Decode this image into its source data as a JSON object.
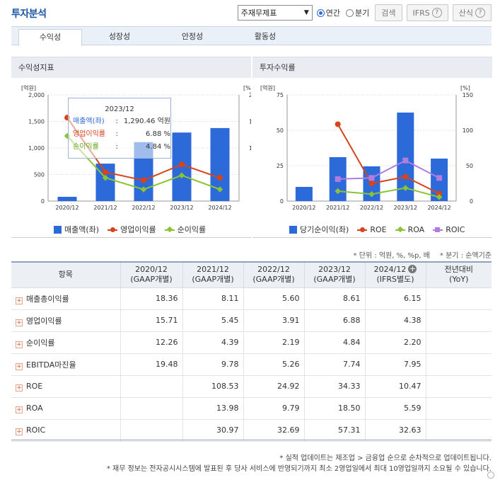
{
  "header": {
    "title": "투자분석",
    "select_value": "주재무제표",
    "radio_annual": "연간",
    "radio_quarter": "분기",
    "search_label": "검색",
    "ifrs_label": "IFRS",
    "formula_label": "산식"
  },
  "tabs": [
    {
      "label": "수익성"
    },
    {
      "label": "성장성"
    },
    {
      "label": "안정성"
    },
    {
      "label": "활동성"
    }
  ],
  "left_panel": {
    "title": "수익성지표",
    "tooltip": {
      "title": "2023/12",
      "rows": [
        {
          "label": "매출액(좌)",
          "sep": ":",
          "value": "1,290.46 억원"
        },
        {
          "label": "영업이익률",
          "sep": ":",
          "value": "6.88 %"
        },
        {
          "label": "순이익률",
          "sep": ":",
          "value": "4.84 %"
        }
      ]
    },
    "legend": [
      "매출액(좌)",
      "영업이익률",
      "순이익률"
    ]
  },
  "right_panel": {
    "title": "투자수익률",
    "legend": [
      "당기순이익(좌)",
      "ROE",
      "ROA",
      "ROIC"
    ]
  },
  "chart_data": [
    {
      "type": "bar",
      "title": "수익성지표",
      "categories": [
        "2020/12",
        "2021/12",
        "2022/12",
        "2023/12",
        "2024/12"
      ],
      "y_left_unit": "[억원]",
      "y_right_unit": "[%]",
      "y_left_ticks": [
        "0",
        "500",
        "1,000",
        "1,500",
        "2,000"
      ],
      "y_right_ticks": [
        "0",
        "5",
        "10",
        "15",
        "20"
      ],
      "ylim_left": [
        0,
        2000
      ],
      "ylim_right": [
        0,
        20
      ],
      "series": [
        {
          "name": "매출액(좌)",
          "type": "bar",
          "axis": "left",
          "color": "#2b6ad8",
          "values": [
            80,
            705,
            1110,
            1290.46,
            1375
          ]
        },
        {
          "name": "영업이익률",
          "type": "line",
          "axis": "right",
          "color": "#d8431c",
          "marker": "circle",
          "values": [
            15.71,
            5.45,
            3.91,
            6.88,
            4.38
          ]
        },
        {
          "name": "순이익률",
          "type": "line",
          "axis": "right",
          "color": "#8bc432",
          "marker": "diamond",
          "values": [
            12.26,
            4.39,
            2.19,
            4.84,
            2.2
          ]
        }
      ]
    },
    {
      "type": "bar",
      "title": "투자수익률",
      "categories": [
        "2020/12",
        "2021/12",
        "2022/12",
        "2023/12",
        "2024/12"
      ],
      "y_left_unit": "[억원]",
      "y_right_unit": "[%]",
      "y_left_ticks": [
        "0",
        "25",
        "50",
        "75"
      ],
      "y_right_ticks": [
        "0",
        "50",
        "100",
        "150"
      ],
      "ylim_left": [
        0,
        75
      ],
      "ylim_right": [
        0,
        150
      ],
      "series": [
        {
          "name": "당기순이익(좌)",
          "type": "bar",
          "axis": "left",
          "color": "#2b6ad8",
          "values": [
            10,
            31,
            24.5,
            62.5,
            30
          ]
        },
        {
          "name": "ROE",
          "type": "line",
          "axis": "right",
          "color": "#d8431c",
          "marker": "circle",
          "values": [
            null,
            108.53,
            24.92,
            34.33,
            10.47
          ]
        },
        {
          "name": "ROA",
          "type": "line",
          "axis": "right",
          "color": "#8bc432",
          "marker": "diamond",
          "values": [
            null,
            13.98,
            9.79,
            18.5,
            5.59
          ]
        },
        {
          "name": "ROIC",
          "type": "line",
          "axis": "right",
          "color": "#b07ce0",
          "marker": "square",
          "values": [
            null,
            30.97,
            32.69,
            57.31,
            32.63
          ]
        }
      ]
    }
  ],
  "unit_note": "* 단위 : 억원, %, %p, 배",
  "quarter_note": "* 분기 : 순액기준",
  "table": {
    "col_item": "항목",
    "columns": [
      {
        "l1": "2020/12",
        "l2": "(GAAP개별)"
      },
      {
        "l1": "2021/12",
        "l2": "(GAAP개별)"
      },
      {
        "l1": "2022/12",
        "l2": "(GAAP개별)"
      },
      {
        "l1": "2023/12",
        "l2": "(GAAP개별)"
      },
      {
        "l1": "2024/12",
        "l2": "(IFRS별도)"
      },
      {
        "l1": "전년대비",
        "l2": "(YoY)"
      }
    ],
    "rows": [
      {
        "name": "매출총이익률",
        "v": [
          "18.36",
          "8.11",
          "5.60",
          "8.61",
          "6.15",
          ""
        ]
      },
      {
        "name": "영업이익률",
        "v": [
          "15.71",
          "5.45",
          "3.91",
          "6.88",
          "4.38",
          ""
        ]
      },
      {
        "name": "순이익률",
        "v": [
          "12.26",
          "4.39",
          "2.19",
          "4.84",
          "2.20",
          ""
        ]
      },
      {
        "name": "EBITDA마진율",
        "v": [
          "19.48",
          "9.78",
          "5.26",
          "7.74",
          "7.95",
          ""
        ]
      },
      {
        "name": "ROE",
        "v": [
          "",
          "108.53",
          "24.92",
          "34.33",
          "10.47",
          ""
        ]
      },
      {
        "name": "ROA",
        "v": [
          "",
          "13.98",
          "9.79",
          "18.50",
          "5.59",
          ""
        ]
      },
      {
        "name": "ROIC",
        "v": [
          "",
          "30.97",
          "32.69",
          "57.31",
          "32.63",
          ""
        ]
      }
    ]
  },
  "notes": [
    "* 실적 업데이트는 제조업 > 금융업 순으로 순차적으로 업데이트됩니다.",
    "* 재무 정보는 전자공시시스템에 발표된 후 당사 서비스에 반영되기까지 최소 2영업일에서 최대 10영업일까지 소요될 수 있습니다."
  ]
}
